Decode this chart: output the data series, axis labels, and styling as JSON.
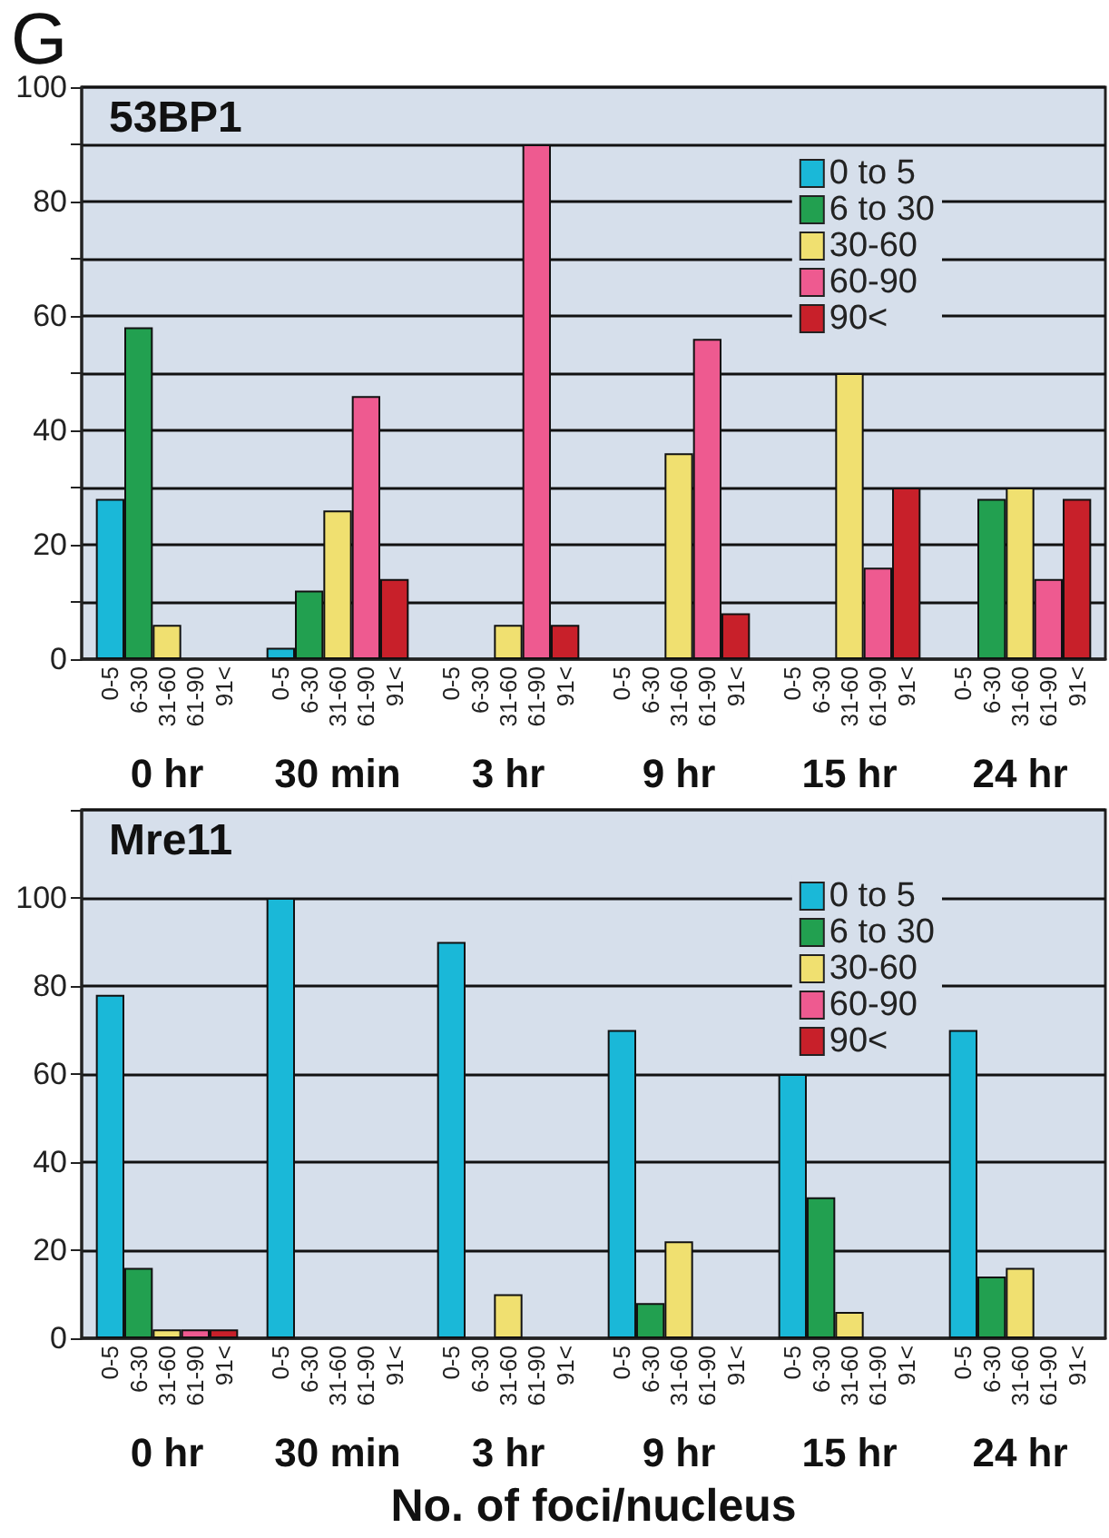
{
  "chart_data": [
    {
      "type": "bar",
      "title": "53BP1",
      "annotations": [
        "G",
        "0-5",
        "6-30",
        "31-60",
        "61-90",
        "91<"
      ],
      "categories": [
        "0 hr",
        "30 min",
        "3 hr",
        "9 hr",
        "15 hr",
        "24 hr"
      ],
      "series": [
        {
          "name": "0 to 5",
          "color": "#1ab8d8",
          "values": [
            28,
            2,
            null,
            null,
            null,
            null
          ]
        },
        {
          "name": "6 to 30",
          "color": "#22a050",
          "values": [
            58,
            12,
            null,
            null,
            null,
            28
          ]
        },
        {
          "name": "30-60",
          "color": "#f0e070",
          "values": [
            6,
            26,
            6,
            36,
            50,
            30
          ]
        },
        {
          "name": "60-90",
          "color": "#ee5a90",
          "values": [
            null,
            46,
            90,
            56,
            16,
            14
          ]
        },
        {
          "name": "90<",
          "color": "#c8202a",
          "values": [
            null,
            14,
            6,
            8,
            30,
            28
          ]
        }
      ],
      "ylim": [
        0,
        100
      ],
      "yticks": [
        0,
        {
          "value": 10,
          "label": null
        },
        20,
        {
          "value": 30,
          "label": null
        },
        40,
        {
          "value": 50,
          "label": null
        },
        60,
        {
          "value": 70,
          "label": null
        },
        80,
        {
          "value": 90,
          "label": null
        },
        100
      ],
      "grid": "y",
      "legend": "top right"
    },
    {
      "type": "bar",
      "title": "Mre11",
      "xlabel": "No. of foci/nucleus",
      "annotations": [
        "0-5",
        "6-30",
        "31-60",
        "61-90",
        "91<"
      ],
      "categories": [
        "0 hr",
        "30 min",
        "3 hr",
        "9 hr",
        "15 hr",
        "24 hr"
      ],
      "series": [
        {
          "name": "0 to 5",
          "color": "#1ab8d8",
          "values": [
            78,
            100,
            90,
            70,
            60,
            70
          ]
        },
        {
          "name": "6 to 30",
          "color": "#22a050",
          "values": [
            16,
            null,
            null,
            8,
            32,
            14
          ]
        },
        {
          "name": "30-60",
          "color": "#f0e070",
          "values": [
            2,
            null,
            10,
            22,
            6,
            16
          ]
        },
        {
          "name": "60-90",
          "color": "#ee5a90",
          "values": [
            2,
            null,
            null,
            null,
            null,
            null
          ]
        },
        {
          "name": "90<",
          "color": "#c8202a",
          "values": [
            2,
            null,
            null,
            null,
            null,
            null
          ]
        }
      ],
      "ylim": [
        0,
        120
      ],
      "yticks": [
        0,
        20,
        40,
        60,
        80,
        100,
        {
          "value": 120,
          "label": null
        }
      ],
      "grid": "y",
      "legend": "top right"
    }
  ]
}
